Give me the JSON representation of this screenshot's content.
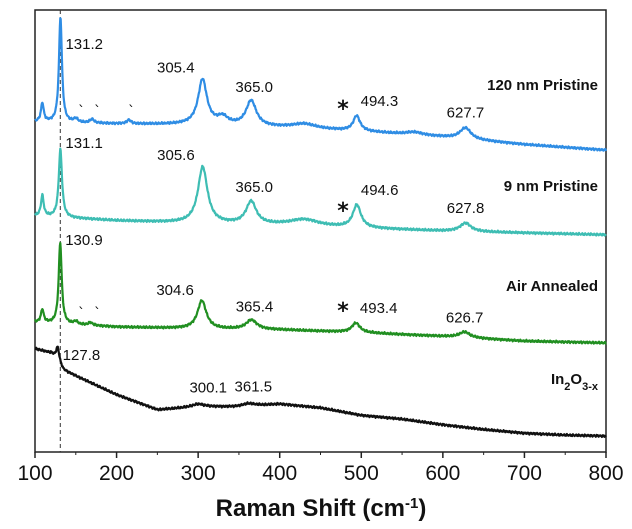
{
  "chart_data": {
    "type": "line",
    "xlabel_main": "Raman Shift (cm",
    "xlabel_sup": "-1",
    "xlabel_end": ")",
    "xlim": [
      100,
      800
    ],
    "xticks": [
      100,
      200,
      300,
      400,
      500,
      600,
      700,
      800
    ],
    "reference_line_x": 131,
    "series": [
      {
        "id": "s120",
        "label": "120 nm  Pristine",
        "color": "#2f8de4",
        "offset": 3.0,
        "baseline": [
          [
            100,
            0.36
          ],
          [
            200,
            0.34
          ],
          [
            300,
            0.33
          ],
          [
            400,
            0.3
          ],
          [
            500,
            0.26
          ],
          [
            600,
            0.2
          ],
          [
            700,
            0.12
          ],
          [
            800,
            0.06
          ]
        ],
        "peaks": [
          {
            "x": 109,
            "h": 0.2,
            "w": 2
          },
          {
            "x": 131.2,
            "h": 1.12,
            "w": 2.2
          },
          {
            "x": 150,
            "h": 0.04,
            "w": 3
          },
          {
            "x": 170,
            "h": 0.04,
            "w": 3
          },
          {
            "x": 215,
            "h": 0.04,
            "w": 3
          },
          {
            "x": 305.4,
            "h": 0.48,
            "w": 6.5
          },
          {
            "x": 330,
            "h": 0.08,
            "w": 8
          },
          {
            "x": 365,
            "h": 0.27,
            "w": 7.5
          },
          {
            "x": 430,
            "h": 0.05,
            "w": 18
          },
          {
            "x": 494.3,
            "h": 0.16,
            "w": 5
          },
          {
            "x": 565,
            "h": 0.03,
            "w": 12
          },
          {
            "x": 627.7,
            "h": 0.12,
            "w": 8
          }
        ],
        "annotations": [
          "131.2",
          "305.4",
          "365.0",
          "494.3",
          "627.7"
        ],
        "annotation_x": [
          131.2,
          305.4,
          365.0,
          494.3,
          627.7
        ]
      },
      {
        "id": "s9",
        "label": "9 nm  Pristine",
        "color": "#3ebdb3",
        "offset": 1.98,
        "baseline": [
          [
            100,
            0.38
          ],
          [
            200,
            0.33
          ],
          [
            300,
            0.3
          ],
          [
            400,
            0.28
          ],
          [
            500,
            0.25
          ],
          [
            600,
            0.22
          ],
          [
            700,
            0.2
          ],
          [
            800,
            0.18
          ]
        ],
        "peaks": [
          {
            "x": 109,
            "h": 0.22,
            "w": 2
          },
          {
            "x": 131.1,
            "h": 0.72,
            "w": 2.4
          },
          {
            "x": 305.6,
            "h": 0.6,
            "w": 7
          },
          {
            "x": 365,
            "h": 0.24,
            "w": 7.5
          },
          {
            "x": 430,
            "h": 0.07,
            "w": 22
          },
          {
            "x": 494.6,
            "h": 0.24,
            "w": 6
          },
          {
            "x": 627.8,
            "h": 0.09,
            "w": 8
          }
        ],
        "annotations": [
          "131.1",
          "305.6",
          "365.0",
          "494.6",
          "627.8"
        ],
        "annotation_x": [
          131.1,
          305.6,
          365.0,
          494.6,
          627.8
        ]
      },
      {
        "id": "sair",
        "label": "Air Annealed",
        "color": "#218f21",
        "offset": 0.98,
        "baseline": [
          [
            100,
            0.25
          ],
          [
            200,
            0.2
          ],
          [
            300,
            0.18
          ],
          [
            400,
            0.17
          ],
          [
            500,
            0.14
          ],
          [
            600,
            0.1
          ],
          [
            700,
            0.05
          ],
          [
            800,
            0.03
          ]
        ],
        "peaks": [
          {
            "x": 109,
            "h": 0.14,
            "w": 2
          },
          {
            "x": 130.9,
            "h": 0.86,
            "w": 2.2
          },
          {
            "x": 150,
            "h": 0.03,
            "w": 3
          },
          {
            "x": 168,
            "h": 0.03,
            "w": 3
          },
          {
            "x": 304.6,
            "h": 0.3,
            "w": 6.5
          },
          {
            "x": 365.4,
            "h": 0.1,
            "w": 8
          },
          {
            "x": 493.4,
            "h": 0.1,
            "w": 6
          },
          {
            "x": 626.7,
            "h": 0.06,
            "w": 8
          }
        ],
        "annotations": [
          "130.9",
          "304.6",
          "365.4",
          "493.4",
          "626.7"
        ],
        "annotation_x": [
          130.9,
          304.6,
          365.4,
          493.4,
          626.7
        ]
      },
      {
        "id": "sin2o3",
        "label_main": "In",
        "label_sub1": "2",
        "label_mid": "O",
        "label_sub2": "3-x",
        "color": "#111111",
        "offset": 0.0,
        "baseline": [
          [
            100,
            0.95
          ],
          [
            120,
            0.9
          ],
          [
            135,
            0.72
          ],
          [
            160,
            0.62
          ],
          [
            200,
            0.46
          ],
          [
            250,
            0.3
          ],
          [
            300,
            0.33
          ],
          [
            350,
            0.33
          ],
          [
            400,
            0.36
          ],
          [
            450,
            0.32
          ],
          [
            500,
            0.24
          ],
          [
            550,
            0.2
          ],
          [
            600,
            0.14
          ],
          [
            650,
            0.09
          ],
          [
            700,
            0.05
          ],
          [
            750,
            0.03
          ],
          [
            800,
            0.02
          ]
        ],
        "peaks": [
          {
            "x": 127.8,
            "h": 0.16,
            "w": 2.5
          },
          {
            "x": 300.1,
            "h": 0.03,
            "w": 10
          },
          {
            "x": 361.5,
            "h": 0.03,
            "w": 10
          }
        ],
        "annotations": [
          "127.8",
          "300.1",
          "361.5"
        ],
        "annotation_x": [
          127.8,
          300.1,
          361.5
        ]
      }
    ],
    "stars": [
      "*",
      "*",
      "*"
    ]
  }
}
